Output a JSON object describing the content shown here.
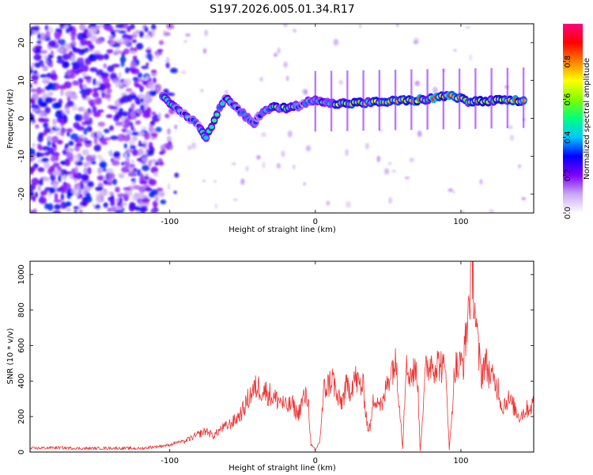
{
  "title": "S197.2026.005.01.34.R17",
  "chart_data": [
    {
      "type": "heatmap",
      "name": "spectrogram",
      "xlabel": "Height of straight line (km)",
      "ylabel": "Frequency (Hz)",
      "xlim": [
        -196,
        150
      ],
      "ylim": [
        -25,
        25
      ],
      "xticks": [
        -100,
        0,
        100
      ],
      "yticks": [
        -20,
        -10,
        0,
        10,
        20
      ],
      "colorbar": {
        "label": "Normalized spectral amplitude",
        "range": [
          0,
          1
        ],
        "ticks": [
          "0.0",
          "0.2",
          "0.4",
          "0.6",
          "0.8"
        ],
        "colors": [
          "#ffffff",
          "#c8a8f0",
          "#8000ff",
          "#0000ff",
          "#00c8ff",
          "#00ff80",
          "#80ff00",
          "#ffff00",
          "#ff8000",
          "#ff0000",
          "#ff0080"
        ]
      },
      "ridge": [
        {
          "x": -105,
          "f": 5.5,
          "a": 0.55
        },
        {
          "x": -95,
          "f": 3.0,
          "a": 0.5
        },
        {
          "x": -88,
          "f": 0.5,
          "a": 0.45
        },
        {
          "x": -80,
          "f": -2.0,
          "a": 0.4
        },
        {
          "x": -75,
          "f": -5.0,
          "a": 0.55
        },
        {
          "x": -62,
          "f": 5.5,
          "a": 0.5
        },
        {
          "x": -55,
          "f": 3.0,
          "a": 0.45
        },
        {
          "x": -48,
          "f": 0.5,
          "a": 0.45
        },
        {
          "x": -42,
          "f": -1.5,
          "a": 0.4
        },
        {
          "x": -38,
          "f": 1.0,
          "a": 0.35
        },
        {
          "x": -30,
          "f": 3.2,
          "a": 0.55
        },
        {
          "x": -20,
          "f": 2.6,
          "a": 0.7
        },
        {
          "x": -10,
          "f": 3.5,
          "a": 0.4
        },
        {
          "x": 0,
          "f": 5.2,
          "a": 0.55
        },
        {
          "x": 10,
          "f": 3.8,
          "a": 0.65
        },
        {
          "x": 25,
          "f": 4.0,
          "a": 0.75
        },
        {
          "x": 40,
          "f": 4.2,
          "a": 0.7
        },
        {
          "x": 55,
          "f": 4.6,
          "a": 0.75
        },
        {
          "x": 70,
          "f": 4.8,
          "a": 0.8
        },
        {
          "x": 85,
          "f": 5.5,
          "a": 0.85
        },
        {
          "x": 92,
          "f": 6.2,
          "a": 0.95
        },
        {
          "x": 105,
          "f": 4.5,
          "a": 0.75
        },
        {
          "x": 115,
          "f": 4.5,
          "a": 0.7
        },
        {
          "x": 130,
          "f": 4.8,
          "a": 0.8
        },
        {
          "x": 145,
          "f": 4.5,
          "a": 0.9
        }
      ]
    },
    {
      "type": "line",
      "name": "snr",
      "xlabel": "Height of straight line (km)",
      "ylabel": "SNR (10 * v/v)",
      "xlim": [
        -196,
        150
      ],
      "ylim": [
        0,
        1075
      ],
      "xticks": [
        -100,
        0,
        100
      ],
      "yticks": [
        0,
        200,
        400,
        600,
        800,
        1000
      ],
      "color": "#ee3333",
      "series": [
        {
          "name": "SNR",
          "x": [
            -196,
            -180,
            -160,
            -140,
            -120,
            -110,
            -100,
            -95,
            -90,
            -85,
            -80,
            -75,
            -70,
            -65,
            -60,
            -55,
            -50,
            -45,
            -40,
            -36,
            -32,
            -28,
            -24,
            -20,
            -16,
            -12,
            -8,
            -5,
            -3,
            0,
            3,
            6,
            9,
            12,
            15,
            18,
            21,
            24,
            27,
            30,
            33,
            36,
            38,
            40,
            42,
            46,
            50,
            54,
            56,
            60,
            62,
            66,
            70,
            72,
            76,
            80,
            82,
            86,
            90,
            92,
            96,
            98,
            102,
            104,
            106,
            108,
            110,
            112,
            114,
            116,
            118,
            122,
            126,
            128,
            132,
            136,
            140,
            145,
            150
          ],
          "y": [
            20,
            25,
            20,
            22,
            20,
            30,
            40,
            55,
            60,
            80,
            100,
            120,
            90,
            130,
            150,
            180,
            230,
            320,
            370,
            350,
            330,
            300,
            290,
            250,
            270,
            210,
            310,
            300,
            40,
            10,
            60,
            350,
            380,
            420,
            300,
            280,
            360,
            360,
            420,
            380,
            360,
            130,
            150,
            300,
            310,
            250,
            420,
            500,
            480,
            20,
            470,
            440,
            460,
            10,
            470,
            510,
            490,
            500,
            430,
            10,
            490,
            470,
            520,
            700,
            900,
            1060,
            760,
            560,
            430,
            510,
            480,
            400,
            360,
            250,
            300,
            260,
            200,
            240,
            270
          ]
        }
      ]
    }
  ]
}
